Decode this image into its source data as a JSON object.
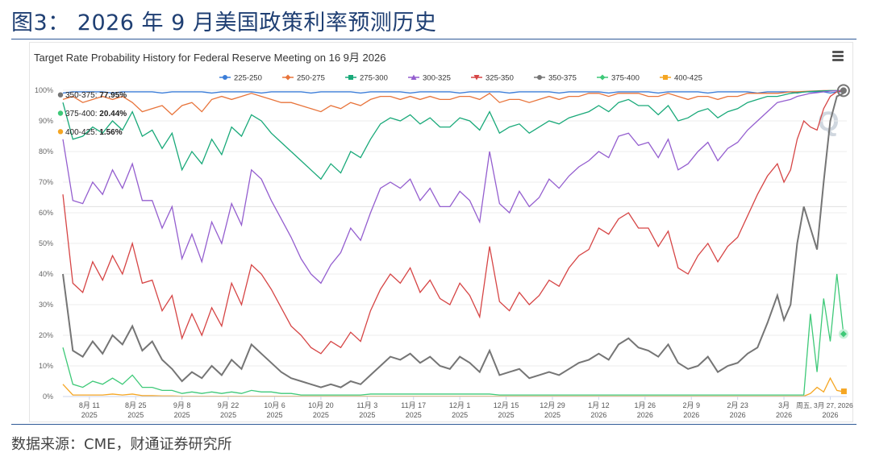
{
  "figure": {
    "title": "图3： 2026 年 9 月美国政策利率预测历史",
    "source": "数据来源：CME，财通证券研究所"
  },
  "chart_data": {
    "type": "line",
    "title": "Target Rate Probability History for Federal Reserve Meeting on 16 9月 2026",
    "ylim": [
      0,
      100
    ],
    "y_ticks": [
      "0%",
      "10%",
      "20%",
      "30%",
      "40%",
      "50%",
      "60%",
      "70%",
      "80%",
      "90%",
      "100%"
    ],
    "x_ticks": [
      {
        "day": 8,
        "l1": "8月 11",
        "l2": "2025"
      },
      {
        "day": 22,
        "l1": "8月 25",
        "l2": "2025"
      },
      {
        "day": 36,
        "l1": "9月 8",
        "l2": "2025"
      },
      {
        "day": 50,
        "l1": "9月 22",
        "l2": "2025"
      },
      {
        "day": 64,
        "l1": "10月 6",
        "l2": "2025"
      },
      {
        "day": 78,
        "l1": "10月 20",
        "l2": "2025"
      },
      {
        "day": 92,
        "l1": "11月 3",
        "l2": "2025"
      },
      {
        "day": 106,
        "l1": "11月 17",
        "l2": "2025"
      },
      {
        "day": 120,
        "l1": "12月 1",
        "l2": "2025"
      },
      {
        "day": 134,
        "l1": "12月 15",
        "l2": "2025"
      },
      {
        "day": 148,
        "l1": "12月 29",
        "l2": "2025"
      },
      {
        "day": 162,
        "l1": "1月 12",
        "l2": "2026"
      },
      {
        "day": 176,
        "l1": "1月 26",
        "l2": "2026"
      },
      {
        "day": 190,
        "l1": "2月 9",
        "l2": "2026"
      },
      {
        "day": 204,
        "l1": "2月 23",
        "l2": "2026"
      },
      {
        "day": 218,
        "l1": "3月",
        "l2": "2026"
      },
      {
        "day": 232,
        "l1": "周五, 3月 27, 2026",
        "l2": "2026"
      }
    ],
    "x_range": [
      0,
      237
    ],
    "grid": true,
    "legend_position": "top",
    "annotations": [
      {
        "series": "350-375",
        "label": "350-375: ",
        "value": "77.95%",
        "y": 98.5
      },
      {
        "series": "375-400",
        "label": "375-400: ",
        "value": "20.44%",
        "y": 92.5
      },
      {
        "series": "400-425",
        "label": "400-425: ",
        "value": "1.56%",
        "y": 86.5
      }
    ],
    "series": [
      {
        "name": "225-250",
        "color": "#3b7dd8",
        "marker": "circle",
        "show_line": false,
        "x": [],
        "y": []
      },
      {
        "name": "250-275",
        "color": "#e8743b",
        "marker": "diamond",
        "show_line": true,
        "x": [
          225,
          226,
          228,
          230,
          232,
          234,
          236
        ],
        "y": [
          99.2,
          99.6,
          99.8,
          99.9,
          99.9,
          99.9,
          99.9
        ]
      },
      {
        "name": "275-300",
        "color": "#19a979",
        "marker": "square",
        "show_line": true,
        "x": [
          220,
          222,
          224,
          226,
          228,
          230,
          232,
          234,
          236
        ],
        "y": [
          96.5,
          97.5,
          98.2,
          99.0,
          99.5,
          99.8,
          99.9,
          99.9,
          99.9
        ]
      },
      {
        "name": "300-325",
        "color": "#945ecf",
        "marker": "triangle",
        "show_line": true,
        "x": [
          210,
          212,
          214,
          216,
          218,
          220,
          222,
          224,
          226,
          228,
          230,
          232,
          234,
          236
        ],
        "y": [
          81,
          85,
          88,
          90,
          93,
          95,
          97,
          98,
          99,
          99.5,
          99.8,
          99.9,
          99.9,
          99.9
        ]
      },
      {
        "name": "325-350",
        "color": "#d64545",
        "marker": "triangle-down",
        "show_line": true,
        "x": [
          208,
          210,
          212,
          214,
          216,
          218,
          220,
          222,
          224,
          226,
          228,
          230,
          232,
          234,
          236
        ],
        "y": [
          45,
          52,
          60,
          66,
          72,
          78,
          85,
          88,
          91,
          94,
          96,
          98,
          99,
          99.5,
          99.8
        ]
      },
      {
        "name": "350-375",
        "color": "#757575",
        "marker": "circle",
        "show_line": true,
        "x": [
          0,
          3,
          6,
          9,
          12,
          15,
          18,
          21,
          24,
          27,
          30,
          33,
          36,
          39,
          42,
          45,
          48,
          51,
          54,
          57,
          60,
          63,
          66,
          69,
          72,
          75,
          78,
          81,
          84,
          87,
          90,
          93,
          96,
          99,
          102,
          105,
          108,
          111,
          114,
          117,
          120,
          123,
          126,
          129,
          132,
          135,
          138,
          141,
          144,
          147,
          150,
          153,
          156,
          159,
          162,
          165,
          168,
          171,
          174,
          177,
          180,
          183,
          186,
          189,
          192,
          195,
          198,
          201,
          204,
          207,
          210,
          213,
          216,
          218,
          220,
          222,
          224,
          226,
          228,
          230,
          232,
          234,
          236
        ],
        "y": [
          40,
          15,
          13,
          18,
          14,
          20,
          17,
          23,
          15,
          18,
          12,
          9,
          5,
          8,
          6,
          10,
          7,
          12,
          9,
          17,
          14,
          11,
          8,
          6,
          5,
          4,
          3,
          4,
          3,
          5,
          4,
          7,
          10,
          13,
          12,
          14,
          11,
          13,
          10,
          9,
          13,
          11,
          8,
          15,
          7,
          8,
          9,
          6,
          7,
          8,
          7,
          9,
          11,
          12,
          14,
          12,
          17,
          19,
          16,
          15,
          13,
          17,
          11,
          9,
          10,
          13,
          8,
          10,
          11,
          14,
          16,
          24,
          33,
          25,
          30,
          50,
          62,
          55,
          48,
          70,
          90,
          98,
          99
        ]
      },
      {
        "name": "375-400",
        "color": "#3ec978",
        "marker": "diamond",
        "show_line": true,
        "x": [
          0,
          3,
          6,
          9,
          12,
          15,
          18,
          21,
          24,
          27,
          30,
          33,
          36,
          39,
          42,
          45,
          48,
          51,
          54,
          57,
          60,
          63,
          66,
          69,
          72,
          75,
          78,
          81,
          84,
          87,
          90,
          93,
          96,
          99,
          102,
          105,
          108,
          111,
          114,
          117,
          120,
          123,
          126,
          129,
          132,
          135,
          138,
          141,
          144,
          147,
          150,
          153,
          156,
          159,
          162,
          165,
          168,
          171,
          174,
          177,
          180,
          183,
          186,
          189,
          192,
          195,
          198,
          201,
          204,
          207,
          210,
          213,
          216,
          218,
          220,
          222,
          224,
          226,
          228,
          230,
          232,
          234,
          236
        ],
        "y": [
          16,
          4,
          3,
          5,
          4,
          6,
          4,
          7,
          3,
          3,
          2,
          2,
          1,
          1.5,
          1,
          1.5,
          1,
          1.5,
          1,
          2,
          1.5,
          1.5,
          1,
          1,
          0.5,
          0.5,
          0.5,
          0.5,
          0.5,
          0.5,
          0.5,
          0.8,
          0.8,
          0.8,
          0.8,
          0.8,
          0.8,
          0.8,
          0.8,
          0.8,
          0.8,
          0.8,
          0.8,
          0.8,
          0.5,
          0.5,
          0.5,
          0.5,
          0.5,
          0.5,
          0.5,
          0.5,
          0.5,
          0.5,
          0.5,
          0.5,
          0.5,
          0.5,
          0.5,
          0.5,
          0.5,
          0.5,
          0.5,
          0.5,
          0.5,
          0.5,
          0.5,
          0.5,
          0.5,
          0.5,
          0.5,
          0.5,
          0.5,
          0.5,
          0.5,
          0.5,
          0.5,
          27,
          8,
          32,
          18,
          40,
          20.44
        ]
      },
      {
        "name": "400-425",
        "color": "#f5a623",
        "marker": "square",
        "show_line": true,
        "x": [
          0,
          3,
          6,
          9,
          12,
          15,
          18,
          21,
          24,
          27,
          30,
          33,
          36,
          39,
          42,
          45,
          48,
          51,
          54,
          57,
          60,
          63,
          66,
          69,
          72,
          75,
          78,
          81,
          84,
          87,
          90,
          93,
          96,
          99,
          102,
          105,
          108,
          111,
          114,
          117,
          120,
          123,
          126,
          129,
          132,
          135,
          138,
          141,
          144,
          147,
          150,
          153,
          156,
          159,
          162,
          165,
          168,
          171,
          174,
          177,
          180,
          183,
          186,
          189,
          192,
          195,
          198,
          201,
          204,
          207,
          210,
          213,
          216,
          218,
          220,
          222,
          224,
          226,
          228,
          230,
          232,
          234,
          236
        ],
        "y": [
          4,
          0.5,
          0.5,
          0.5,
          0.5,
          0.8,
          0.5,
          0.8,
          0.3,
          0.3,
          0.2,
          0.2,
          0.1,
          0.1,
          0.1,
          0.1,
          0.1,
          0.1,
          0.1,
          0.1,
          0.1,
          0.1,
          0.1,
          0.1,
          0.1,
          0.1,
          0.1,
          0.1,
          0.1,
          0.1,
          0.1,
          0.1,
          0.1,
          0.1,
          0.1,
          0.1,
          0.1,
          0.1,
          0.1,
          0.1,
          0.1,
          0.1,
          0.1,
          0.1,
          0.1,
          0.1,
          0.1,
          0.1,
          0.1,
          0.1,
          0.1,
          0.1,
          0.1,
          0.1,
          0.1,
          0.1,
          0.1,
          0.1,
          0.1,
          0.1,
          0.1,
          0.1,
          0.1,
          0.1,
          0.1,
          0.1,
          0.1,
          0.1,
          0.1,
          0.1,
          0.1,
          0.1,
          0.1,
          0.1,
          0.1,
          0.1,
          0.1,
          1,
          3,
          1.5,
          6,
          2,
          1.56
        ]
      }
    ],
    "composite_bands": {
      "description_free": true,
      "upper_bound_250_275": [
        97,
        98,
        96,
        97,
        98,
        97,
        98,
        96,
        93,
        94,
        95,
        92,
        95,
        96,
        93,
        97,
        98,
        97,
        98,
        99,
        98,
        97,
        96,
        96,
        95,
        94,
        93,
        95,
        94,
        96,
        95,
        97,
        98,
        98,
        97,
        98,
        97,
        98,
        97,
        97,
        98,
        98,
        97,
        99,
        96,
        97,
        97,
        96,
        97,
        98,
        97,
        98,
        98,
        99,
        99,
        98,
        99,
        99,
        99,
        98,
        98,
        99,
        98,
        97,
        98,
        98,
        97,
        98,
        98,
        99,
        99,
        99,
        99,
        99.2,
        99.5,
        99.5,
        99.6,
        99.7,
        99.8,
        99.9,
        99.9,
        99.9,
        99.9
      ],
      "upper_bound_275_300": [
        96,
        84,
        85,
        88,
        86,
        90,
        87,
        93,
        85,
        87,
        81,
        86,
        74,
        80,
        76,
        84,
        79,
        88,
        85,
        92,
        90,
        86,
        83,
        80,
        77,
        74,
        71,
        76,
        73,
        80,
        78,
        84,
        89,
        91,
        90,
        92,
        89,
        91,
        88,
        88,
        91,
        90,
        87,
        93,
        86,
        88,
        89,
        86,
        88,
        90,
        89,
        91,
        92,
        93,
        95,
        93,
        96,
        97,
        95,
        95,
        92,
        95,
        90,
        91,
        93,
        94,
        91,
        93,
        94,
        96,
        97,
        98,
        98,
        98.5,
        99,
        99.2,
        99.4,
        99.6,
        99.7,
        99.8,
        99.9,
        99.9,
        99.9
      ],
      "upper_bound_300_325": [
        84,
        64,
        63,
        70,
        66,
        74,
        68,
        76,
        64,
        64,
        55,
        62,
        45,
        53,
        44,
        57,
        50,
        63,
        56,
        74,
        71,
        64,
        58,
        52,
        45,
        40,
        37,
        43,
        47,
        55,
        51,
        60,
        68,
        70,
        68,
        71,
        64,
        68,
        62,
        62,
        67,
        64,
        57,
        80,
        63,
        60,
        67,
        62,
        65,
        71,
        68,
        72,
        75,
        77,
        80,
        78,
        85,
        86,
        82,
        83,
        78,
        84,
        74,
        76,
        80,
        83,
        77,
        81,
        83,
        87,
        90,
        93,
        96,
        96.5,
        97,
        98,
        98.5,
        99,
        99.2,
        99.5,
        99.7,
        99.9,
        99.9
      ],
      "upper_bound_325_350": [
        66,
        37,
        34,
        44,
        38,
        46,
        40,
        50,
        37,
        38,
        28,
        33,
        19,
        27,
        20,
        29,
        23,
        37,
        30,
        43,
        40,
        35,
        29,
        23,
        20,
        16,
        14,
        18,
        16,
        21,
        18,
        28,
        35,
        40,
        37,
        42,
        34,
        38,
        32,
        30,
        37,
        33,
        26,
        49,
        31,
        28,
        34,
        30,
        33,
        38,
        36,
        42,
        46,
        48,
        55,
        53,
        58,
        60,
        55,
        55,
        49,
        54,
        42,
        40,
        46,
        50,
        44,
        49,
        52,
        59,
        66,
        72,
        76,
        70,
        74,
        84,
        90,
        88,
        87,
        94,
        98,
        99.5,
        99.8
      ]
    },
    "legend_labels": [
      "225-250",
      "250-275",
      "275-300",
      "300-325",
      "325-350",
      "350-375",
      "375-400",
      "400-425"
    ]
  }
}
